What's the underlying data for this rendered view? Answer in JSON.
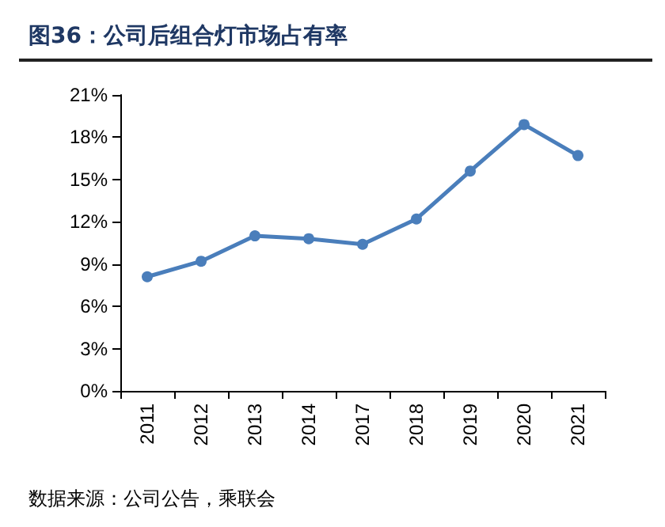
{
  "chart_data": {
    "type": "line",
    "title": "图36：公司后组合灯市场占有率",
    "categories": [
      "2011",
      "2012",
      "2013",
      "2014",
      "2017",
      "2018",
      "2019",
      "2020",
      "2021"
    ],
    "series": [
      {
        "color": "#4a7ebb",
        "values": [
          8.1,
          9.2,
          11.0,
          10.8,
          10.4,
          12.2,
          15.6,
          18.9,
          16.7
        ]
      }
    ],
    "ylim": [
      0,
      21
    ],
    "yticks": [
      {
        "value": 0,
        "label": "0%"
      },
      {
        "value": 3,
        "label": "3%"
      },
      {
        "value": 6,
        "label": "6%"
      },
      {
        "value": 9,
        "label": "9%"
      },
      {
        "value": 12,
        "label": "12%"
      },
      {
        "value": 15,
        "label": "15%"
      },
      {
        "value": 18,
        "label": "18%"
      },
      {
        "value": 21,
        "label": "21%"
      }
    ],
    "marker": "circle",
    "grid": false,
    "annotations": [
      "数据来源：公司公告，乘联会"
    ]
  }
}
